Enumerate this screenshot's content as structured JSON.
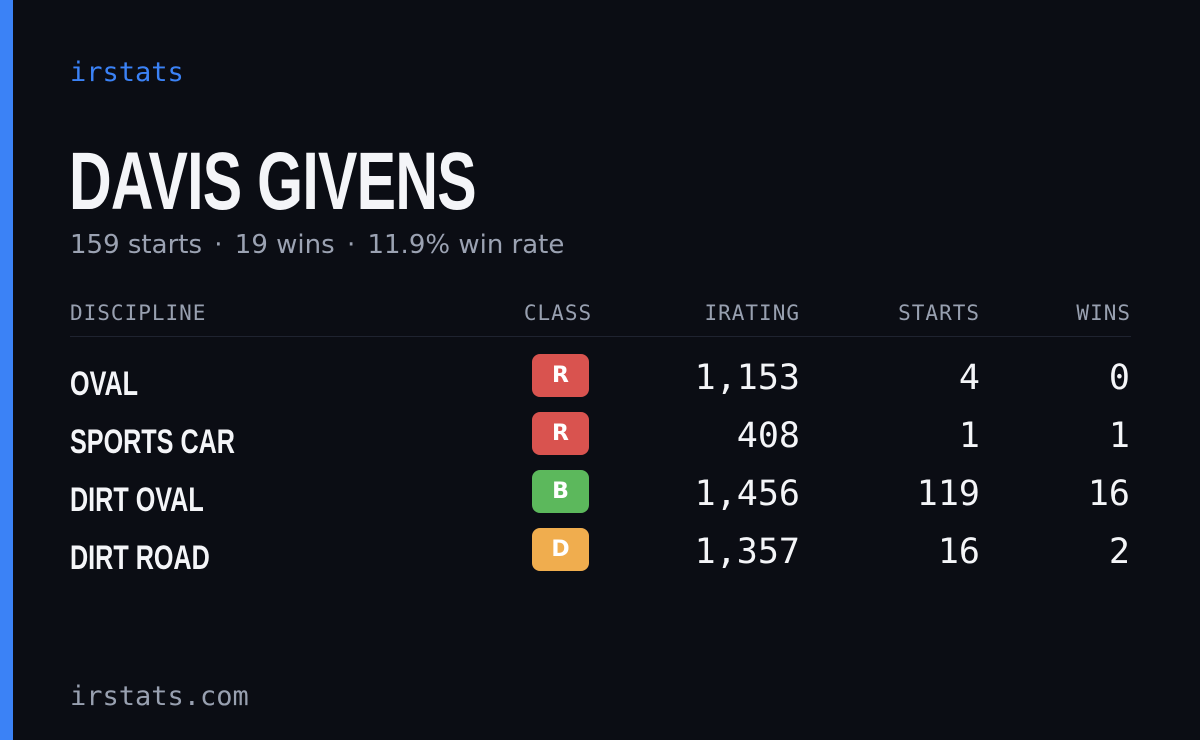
{
  "brand": "irstats",
  "driver": {
    "name": "DAVIS GIVENS",
    "starts_text": "159 starts",
    "wins_text": "19 wins",
    "win_rate_text": "11.9% win rate",
    "separator": "·"
  },
  "table": {
    "headers": {
      "discipline": "DISCIPLINE",
      "class": "CLASS",
      "irating": "IRATING",
      "starts": "STARTS",
      "wins": "WINS"
    },
    "rows": [
      {
        "discipline": "OVAL",
        "class": "R",
        "class_color": "#d9534f",
        "irating": "1,153",
        "starts": "4",
        "wins": "0"
      },
      {
        "discipline": "SPORTS CAR",
        "class": "R",
        "class_color": "#d9534f",
        "irating": "408",
        "starts": "1",
        "wins": "1"
      },
      {
        "discipline": "DIRT OVAL",
        "class": "B",
        "class_color": "#5cb85c",
        "irating": "1,456",
        "starts": "119",
        "wins": "16"
      },
      {
        "discipline": "DIRT ROAD",
        "class": "D",
        "class_color": "#f0ad4e",
        "irating": "1,357",
        "starts": "16",
        "wins": "2"
      }
    ]
  },
  "footer": "irstats.com",
  "colors": {
    "background": "#0b0d14",
    "accent": "#3b82f6",
    "text_primary": "#f4f5f8",
    "text_muted": "#9ba2b2"
  }
}
